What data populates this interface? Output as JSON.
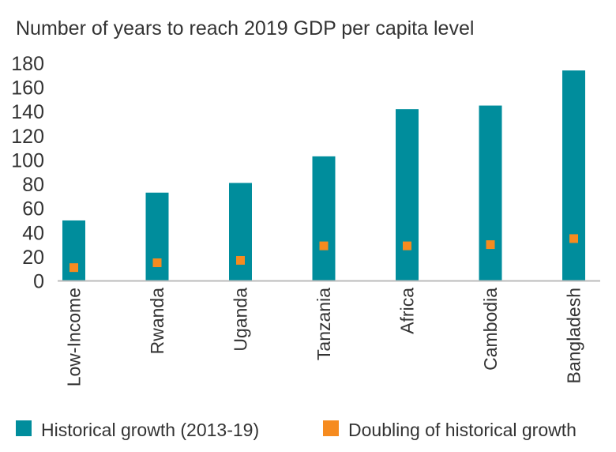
{
  "chart_data": {
    "type": "bar",
    "title": "Number of years to reach 2019 GDP per capita level",
    "xlabel": "",
    "ylabel": "",
    "ylim": [
      0,
      180
    ],
    "yticks": [
      "0",
      "20",
      "40",
      "60",
      "80",
      "100",
      "120",
      "140",
      "160",
      "180"
    ],
    "grid": false,
    "legend_placement": "bottom",
    "categories": [
      "Low-Income",
      "Rwanda",
      "Uganda",
      "Tanzania",
      "Africa",
      "Cambodia",
      "Bangladesh"
    ],
    "series": [
      {
        "name": "Historical growth (2013-19)",
        "kind": "bar",
        "color": "#008d9c",
        "values": [
          50,
          73,
          81,
          103,
          142,
          145,
          174
        ]
      },
      {
        "name": "Doubling of historical growth",
        "kind": "marker",
        "color": "#f68b1f",
        "values": [
          11,
          15,
          17,
          29,
          29,
          30,
          35
        ]
      }
    ]
  }
}
